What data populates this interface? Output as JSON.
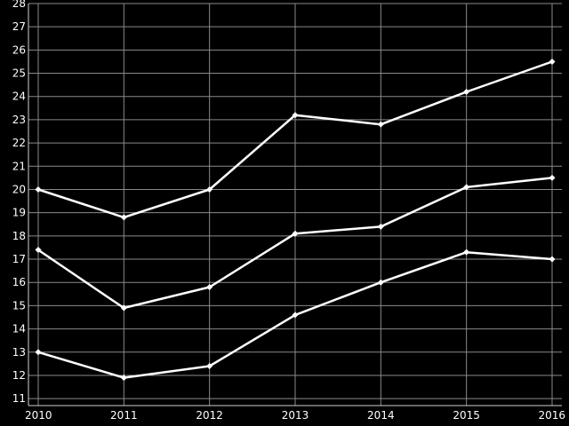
{
  "chart_data": {
    "type": "line",
    "title": "",
    "xlabel": "",
    "ylabel": "",
    "x": [
      "2010",
      "2011",
      "2012",
      "2013",
      "2014",
      "2015",
      "2016"
    ],
    "yticks": [
      "11",
      "12",
      "13",
      "14",
      "15",
      "16",
      "17",
      "18",
      "19",
      "20",
      "21",
      "22",
      "23",
      "24",
      "25",
      "26",
      "27",
      "28"
    ],
    "ylim": [
      10.7,
      28
    ],
    "grid": true,
    "legend": "none",
    "colors": {
      "background": "#000000",
      "line": "#ffffff",
      "grid": "#8a8a8a"
    },
    "series": [
      {
        "values": [
          20.0,
          18.8,
          20.0,
          23.2,
          22.8,
          24.2,
          25.5
        ]
      },
      {
        "values": [
          17.4,
          14.9,
          15.8,
          18.1,
          18.4,
          20.1,
          20.5
        ]
      },
      {
        "values": [
          13.0,
          11.9,
          12.4,
          14.6,
          16.0,
          17.3,
          17.0
        ]
      }
    ]
  }
}
